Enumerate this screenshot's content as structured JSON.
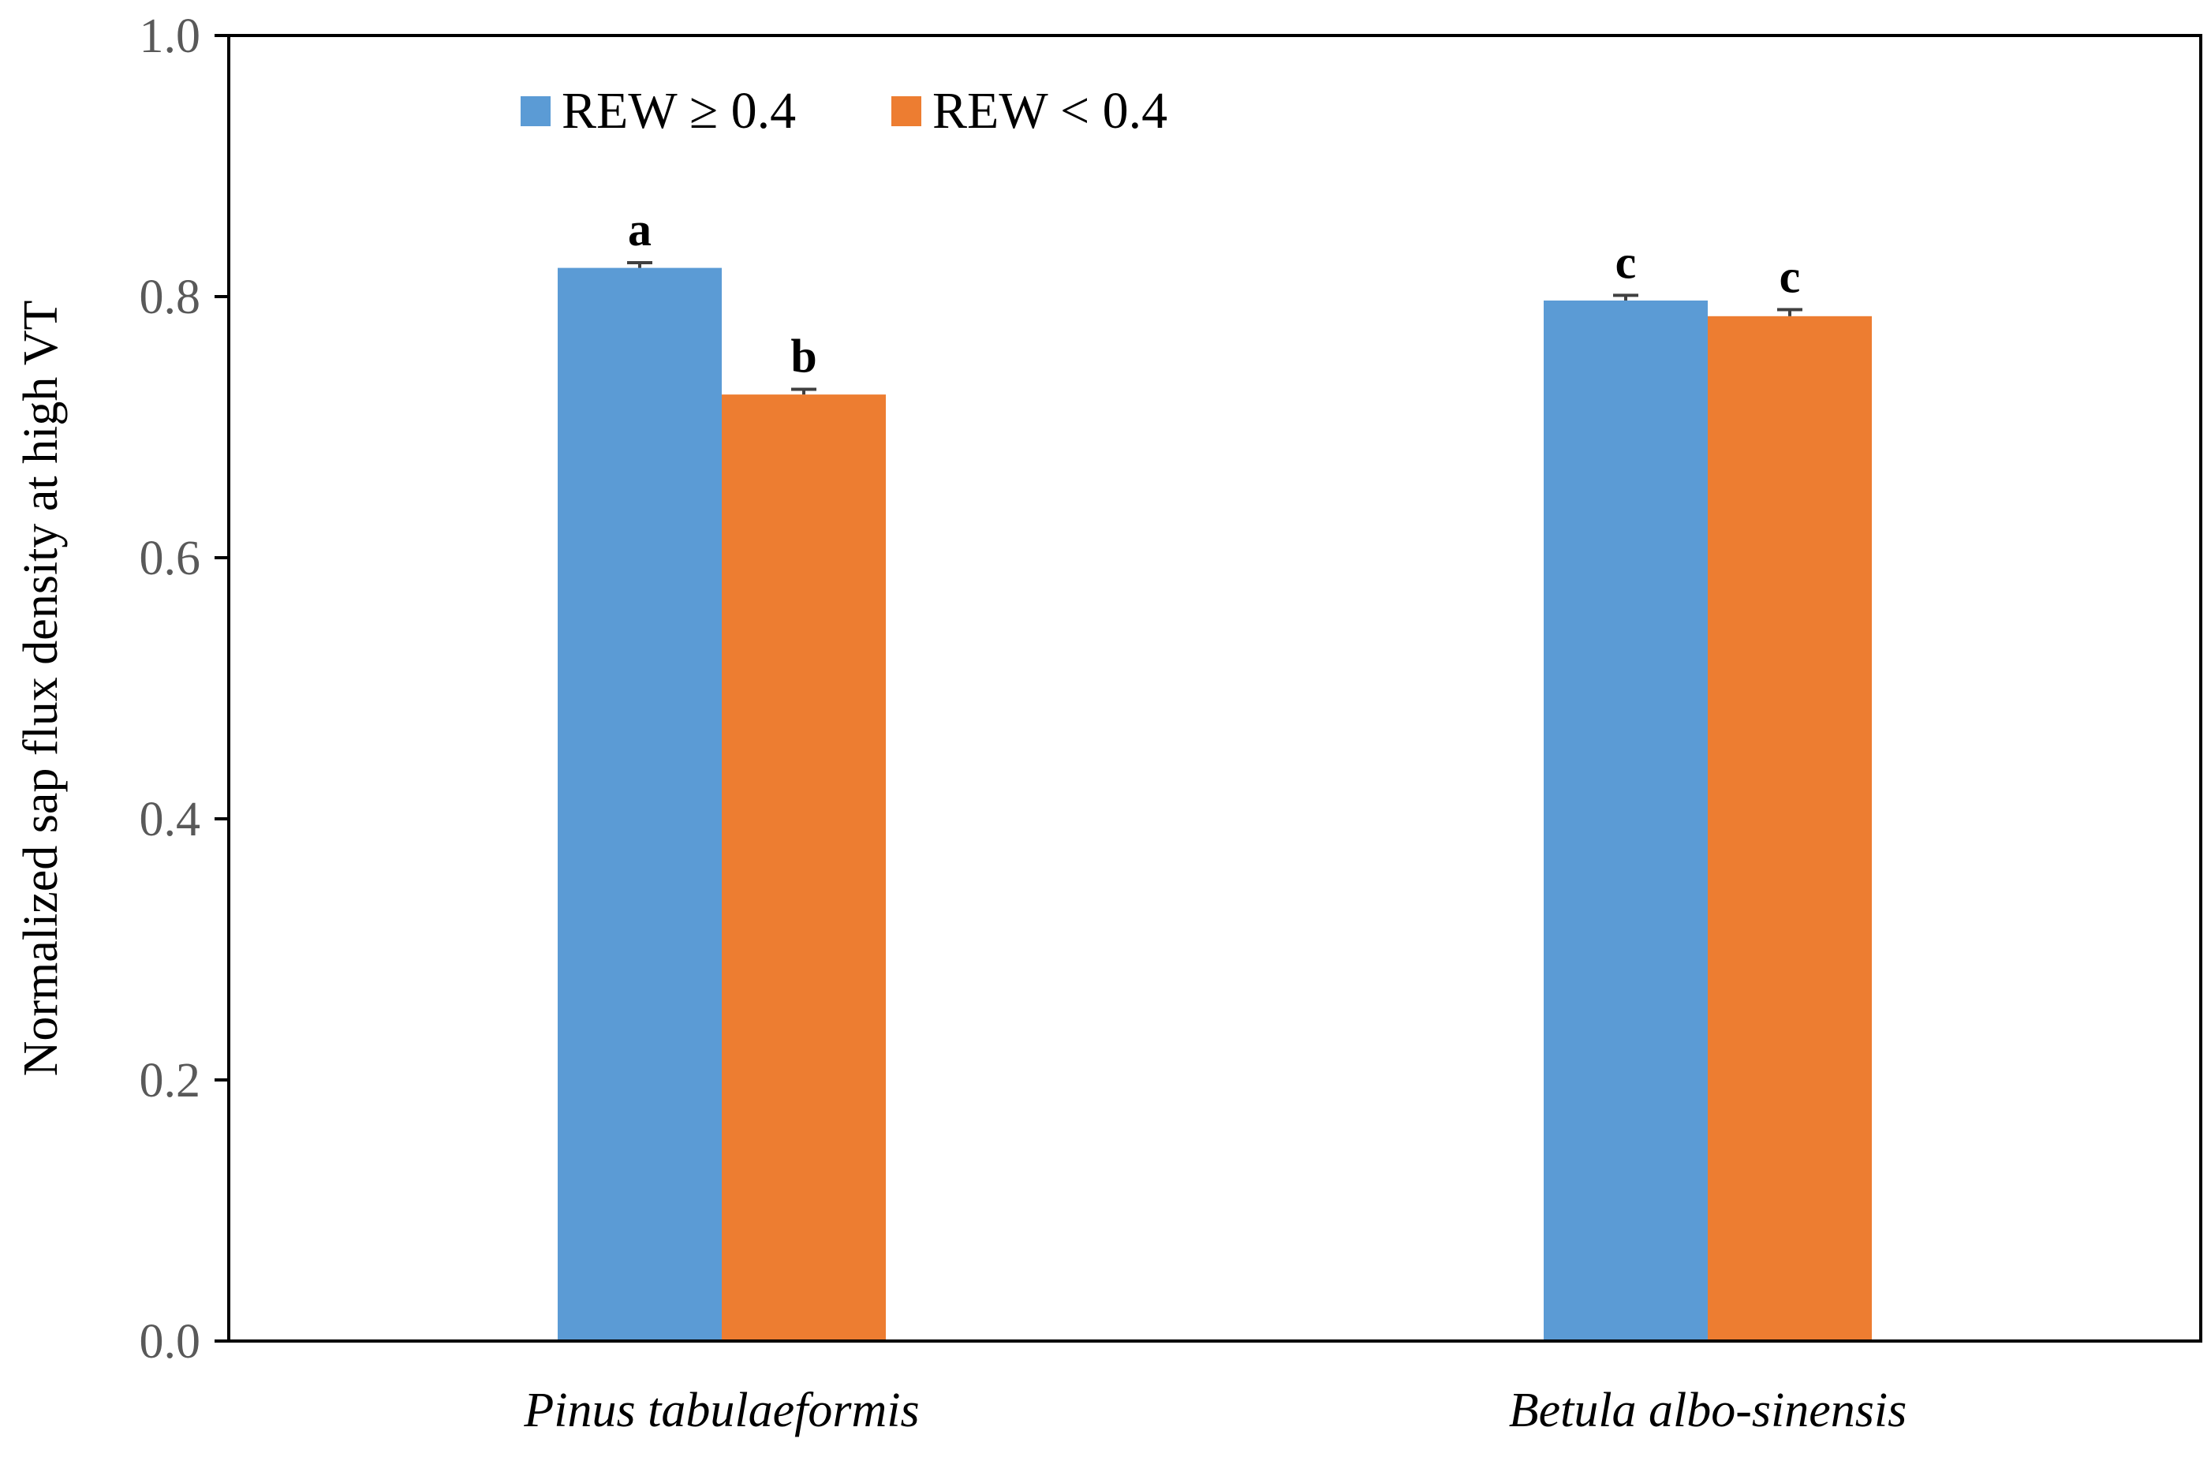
{
  "chart_data": {
    "type": "bar",
    "ylabel": "Normalized sap flux density at high VT",
    "xlabel": "",
    "ylim": [
      0,
      1.0
    ],
    "yticks": [
      "0.0",
      "0.2",
      "0.4",
      "0.6",
      "0.8",
      "1.0"
    ],
    "grid": false,
    "legend_position": "top-left",
    "categories": [
      "Pinus tabulaeformis",
      "Betula albo-sinensis"
    ],
    "series": [
      {
        "name": "REW ≥ 0.4",
        "color": "#5B9BD5",
        "values": [
          0.822,
          0.797
        ],
        "errors": [
          0.004,
          0.004
        ],
        "labels": [
          "a",
          "c"
        ]
      },
      {
        "name": "REW < 0.4",
        "color": "#ED7D31",
        "values": [
          0.725,
          0.785
        ],
        "errors": [
          0.004,
          0.005
        ],
        "labels": [
          "b",
          "c"
        ]
      }
    ]
  }
}
